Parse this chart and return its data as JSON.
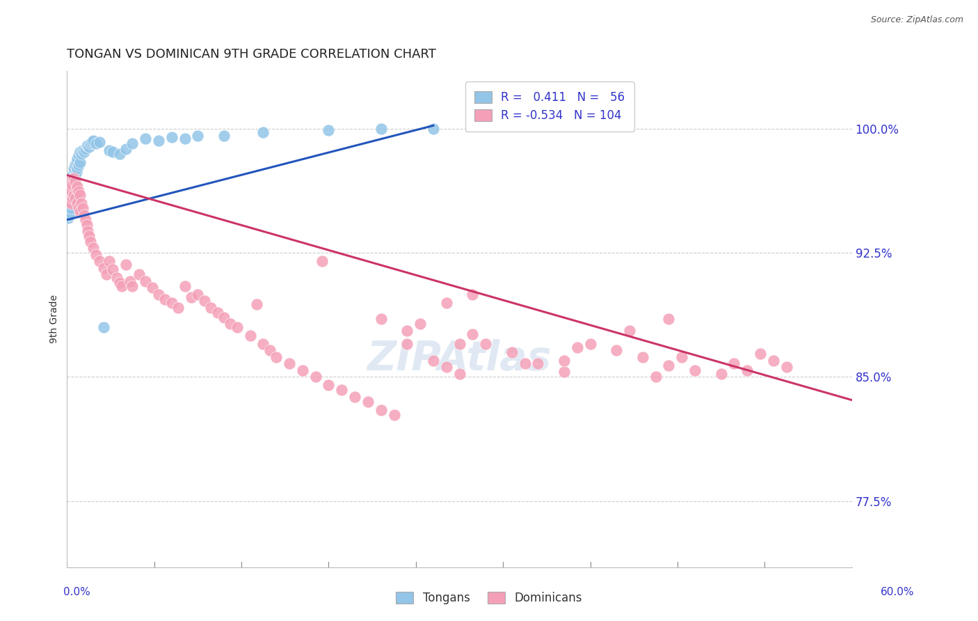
{
  "title": "TONGAN VS DOMINICAN 9TH GRADE CORRELATION CHART",
  "source": "Source: ZipAtlas.com",
  "ylabel": "9th Grade",
  "ylabel_ticks": [
    "100.0%",
    "92.5%",
    "85.0%",
    "77.5%"
  ],
  "ylabel_tick_vals": [
    1.0,
    0.925,
    0.85,
    0.775
  ],
  "xmin": 0.0,
  "xmax": 0.6,
  "ymin": 0.735,
  "ymax": 1.035,
  "blue_R": 0.411,
  "blue_N": 56,
  "pink_R": -0.534,
  "pink_N": 104,
  "blue_color": "#92C5E8",
  "pink_color": "#F4A0B8",
  "blue_line_color": "#2255BB",
  "pink_line_color": "#CC3366",
  "legend_blue_label": "Tongans",
  "legend_pink_label": "Dominicans",
  "blue_line_x": [
    0.0,
    0.28
  ],
  "blue_line_y": [
    0.945,
    1.002
  ],
  "pink_line_x": [
    0.0,
    0.6
  ],
  "pink_line_y": [
    0.972,
    0.836
  ],
  "blue_points_x": [
    0.001,
    0.001,
    0.001,
    0.002,
    0.002,
    0.002,
    0.002,
    0.003,
    0.003,
    0.003,
    0.003,
    0.004,
    0.004,
    0.004,
    0.005,
    0.005,
    0.005,
    0.006,
    0.006,
    0.006,
    0.007,
    0.007,
    0.008,
    0.008,
    0.009,
    0.009,
    0.01,
    0.01,
    0.011,
    0.012,
    0.013,
    0.014,
    0.015,
    0.016,
    0.017,
    0.018,
    0.019,
    0.02,
    0.022,
    0.025,
    0.028,
    0.032,
    0.035,
    0.04,
    0.045,
    0.05,
    0.06,
    0.07,
    0.08,
    0.09,
    0.1,
    0.12,
    0.15,
    0.2,
    0.24,
    0.28
  ],
  "blue_points_y": [
    0.96,
    0.953,
    0.946,
    0.962,
    0.958,
    0.953,
    0.948,
    0.968,
    0.963,
    0.958,
    0.952,
    0.972,
    0.967,
    0.961,
    0.976,
    0.97,
    0.964,
    0.978,
    0.972,
    0.966,
    0.98,
    0.974,
    0.982,
    0.976,
    0.984,
    0.978,
    0.986,
    0.98,
    0.985,
    0.987,
    0.986,
    0.988,
    0.99,
    0.99,
    0.989,
    0.991,
    0.992,
    0.993,
    0.991,
    0.992,
    0.88,
    0.987,
    0.986,
    0.985,
    0.988,
    0.991,
    0.994,
    0.993,
    0.995,
    0.994,
    0.996,
    0.996,
    0.998,
    0.999,
    1.0,
    1.0
  ],
  "pink_points_x": [
    0.001,
    0.001,
    0.002,
    0.002,
    0.003,
    0.003,
    0.004,
    0.004,
    0.005,
    0.005,
    0.006,
    0.006,
    0.007,
    0.008,
    0.008,
    0.009,
    0.009,
    0.01,
    0.01,
    0.011,
    0.012,
    0.013,
    0.014,
    0.015,
    0.016,
    0.017,
    0.018,
    0.02,
    0.022,
    0.025,
    0.028,
    0.03,
    0.032,
    0.035,
    0.038,
    0.04,
    0.042,
    0.045,
    0.048,
    0.05,
    0.055,
    0.06,
    0.065,
    0.07,
    0.075,
    0.08,
    0.085,
    0.09,
    0.095,
    0.1,
    0.105,
    0.11,
    0.115,
    0.12,
    0.125,
    0.13,
    0.14,
    0.15,
    0.155,
    0.16,
    0.17,
    0.18,
    0.19,
    0.2,
    0.21,
    0.22,
    0.23,
    0.24,
    0.25,
    0.26,
    0.27,
    0.28,
    0.29,
    0.3,
    0.31,
    0.32,
    0.34,
    0.36,
    0.38,
    0.4,
    0.42,
    0.44,
    0.46,
    0.48,
    0.5,
    0.51,
    0.52,
    0.53,
    0.54,
    0.55,
    0.145,
    0.195,
    0.39,
    0.43,
    0.46,
    0.29,
    0.31,
    0.47,
    0.35,
    0.24,
    0.26,
    0.3,
    0.38,
    0.45
  ],
  "pink_points_y": [
    0.968,
    0.958,
    0.966,
    0.956,
    0.962,
    0.955,
    0.966,
    0.958,
    0.97,
    0.96,
    0.968,
    0.958,
    0.964,
    0.965,
    0.955,
    0.962,
    0.952,
    0.96,
    0.95,
    0.955,
    0.952,
    0.948,
    0.945,
    0.942,
    0.938,
    0.935,
    0.932,
    0.928,
    0.924,
    0.92,
    0.916,
    0.912,
    0.92,
    0.915,
    0.91,
    0.907,
    0.905,
    0.918,
    0.908,
    0.905,
    0.912,
    0.908,
    0.904,
    0.9,
    0.897,
    0.895,
    0.892,
    0.905,
    0.898,
    0.9,
    0.896,
    0.892,
    0.889,
    0.886,
    0.882,
    0.88,
    0.875,
    0.87,
    0.866,
    0.862,
    0.858,
    0.854,
    0.85,
    0.845,
    0.842,
    0.838,
    0.835,
    0.83,
    0.827,
    0.87,
    0.882,
    0.86,
    0.856,
    0.852,
    0.876,
    0.87,
    0.865,
    0.858,
    0.853,
    0.87,
    0.866,
    0.862,
    0.857,
    0.854,
    0.852,
    0.858,
    0.854,
    0.864,
    0.86,
    0.856,
    0.894,
    0.92,
    0.868,
    0.878,
    0.885,
    0.895,
    0.9,
    0.862,
    0.858,
    0.885,
    0.878,
    0.87,
    0.86,
    0.85
  ]
}
